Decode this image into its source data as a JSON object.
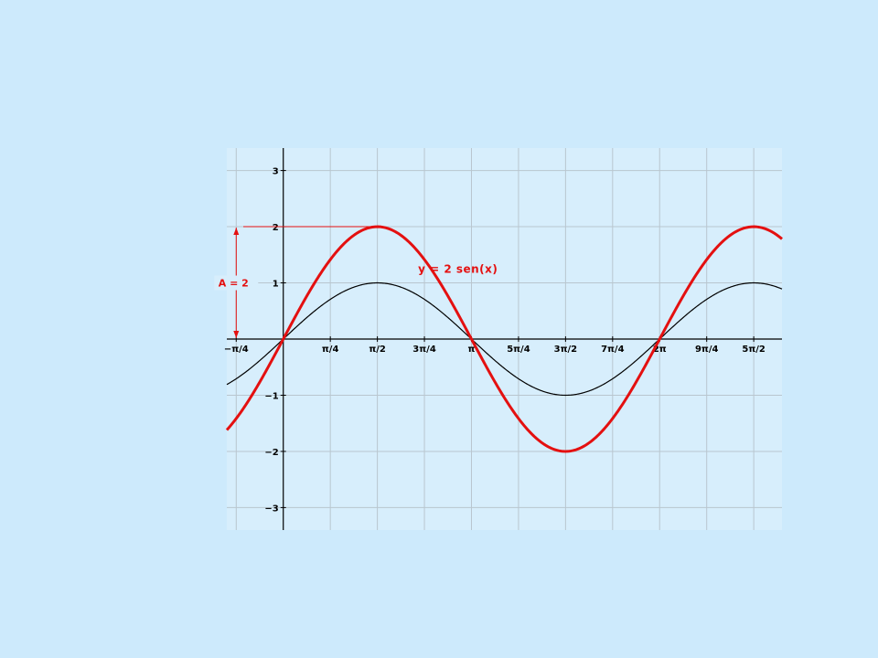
{
  "chart_data": {
    "type": "line",
    "title": "",
    "xlabel": "",
    "ylabel": "",
    "xlim": [
      -0.9425,
      8.3252
    ],
    "ylim": [
      -3.4,
      3.4
    ],
    "grid": true,
    "x_ticks": [
      {
        "value": -0.7854,
        "label": "−π/4"
      },
      {
        "value": 0.7854,
        "label": "π/4"
      },
      {
        "value": 1.5708,
        "label": "π/2"
      },
      {
        "value": 2.3562,
        "label": "3π/4"
      },
      {
        "value": 3.1416,
        "label": "π"
      },
      {
        "value": 3.927,
        "label": "5π/4"
      },
      {
        "value": 4.7124,
        "label": "3π/2"
      },
      {
        "value": 5.4978,
        "label": "7π/4"
      },
      {
        "value": 6.2832,
        "label": "2π"
      },
      {
        "value": 7.0686,
        "label": "9π/4"
      },
      {
        "value": 7.854,
        "label": "5π/2"
      }
    ],
    "y_ticks": [
      {
        "value": 3,
        "label": "3"
      },
      {
        "value": 2,
        "label": "2"
      },
      {
        "value": 1,
        "label": "1"
      },
      {
        "value": -1,
        "label": "−1"
      },
      {
        "value": -2,
        "label": "−2"
      },
      {
        "value": -3,
        "label": "−3"
      }
    ],
    "series": [
      {
        "function": "sin",
        "amplitude": 1,
        "color": "#000000"
      },
      {
        "name": "y = 2 sen(x)",
        "function": "sin",
        "amplitude": 2,
        "color": "#e41010"
      }
    ],
    "annotations": [
      {
        "text": "A = 2",
        "color": "#e41010"
      }
    ]
  },
  "colors": {
    "background": "#cdeafc",
    "plot_background": "#d7eefc",
    "grid": "#b9c6cf",
    "axis": "#000000",
    "accent": "#e41010"
  }
}
